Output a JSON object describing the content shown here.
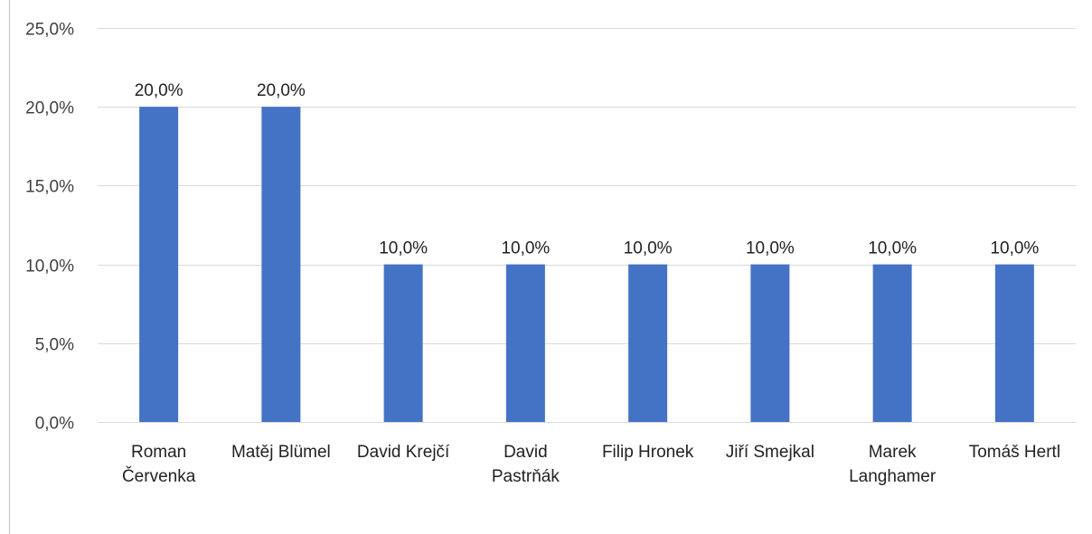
{
  "chart_data": {
    "type": "bar",
    "categories": [
      [
        "Roman",
        "Červenka"
      ],
      [
        "Matěj Blümel"
      ],
      [
        "David Krejčí"
      ],
      [
        "David",
        "Pastrňák"
      ],
      [
        "Filip Hronek"
      ],
      [
        "Jiří Smejkal"
      ],
      [
        "Marek",
        "Langhamer"
      ],
      [
        "Tomáš Hertl"
      ]
    ],
    "values": [
      20.0,
      20.0,
      10.0,
      10.0,
      10.0,
      10.0,
      10.0,
      10.0
    ],
    "data_labels": [
      "20,0%",
      "20,0%",
      "10,0%",
      "10,0%",
      "10,0%",
      "10,0%",
      "10,0%",
      "10,0%"
    ],
    "y_ticks": [
      0,
      5,
      10,
      15,
      20,
      25
    ],
    "y_tick_labels": [
      "0,0%",
      "5,0%",
      "10,0%",
      "15,0%",
      "20,0%",
      "25,0%"
    ],
    "ylim": [
      0,
      25
    ],
    "title": "",
    "xlabel": "",
    "ylabel": "",
    "grid": true,
    "legend": "none",
    "colors": {
      "bar": "#4472C4",
      "grid": "#D9D9D9",
      "border": "#BFBFBF"
    }
  }
}
